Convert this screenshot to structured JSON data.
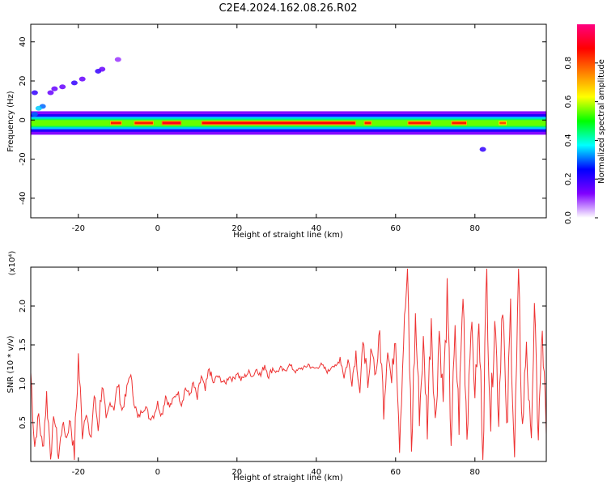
{
  "title": "C2E4.2024.162.08.26.R02",
  "chart_data": [
    {
      "type": "heatmap",
      "xlabel": "Height of straight line (km)",
      "ylabel": "Frequency (Hz)",
      "xlim": [
        -32,
        98
      ],
      "ylim": [
        -50,
        49
      ],
      "xticks": [
        "-20",
        "0",
        "20",
        "40",
        "60",
        "80"
      ],
      "yticks": [
        "40",
        "20",
        "0",
        "-20",
        "-40"
      ],
      "xtick_values": [
        -20,
        0,
        20,
        40,
        60,
        80
      ],
      "ytick_values": [
        40,
        20,
        0,
        -20,
        -40
      ],
      "colorbar": {
        "label": "Normalized spectral amplitude",
        "range": [
          0,
          1
        ],
        "ticks": [
          "0.0",
          "0.2",
          "0.4",
          "0.6",
          "0.8"
        ],
        "tick_values": [
          0.0,
          0.2,
          0.4,
          0.6,
          0.8
        ],
        "colors": [
          "#ffffff",
          "#8000ff",
          "#0000ff",
          "#00ffff",
          "#00ff00",
          "#ffff00",
          "#ff8000",
          "#ff0000",
          "#ff0080"
        ]
      },
      "band": {
        "freq_center": -1.5,
        "freq_halfwidth": 1.5,
        "x_start": -32,
        "x_end": 98
      },
      "high_amplitude_segments": [
        {
          "x": [
            -12,
            -9
          ],
          "amp": 0.85
        },
        {
          "x": [
            -6,
            -1
          ],
          "amp": 0.85
        },
        {
          "x": [
            1,
            6
          ],
          "amp": 0.9
        },
        {
          "x": [
            11,
            50
          ],
          "amp": 0.88
        },
        {
          "x": [
            52,
            54
          ],
          "amp": 0.85
        },
        {
          "x": [
            63,
            69
          ],
          "amp": 0.85
        },
        {
          "x": [
            74,
            78
          ],
          "amp": 0.85
        },
        {
          "x": [
            86,
            88
          ],
          "amp": 0.8
        }
      ],
      "scatter_points": [
        {
          "x": -31,
          "f": 14,
          "amp": 0.2
        },
        {
          "x": -29,
          "f": 7,
          "amp": 0.3
        },
        {
          "x": -27,
          "f": 14,
          "amp": 0.15
        },
        {
          "x": -26,
          "f": 16,
          "amp": 0.15
        },
        {
          "x": -24,
          "f": 17,
          "amp": 0.15
        },
        {
          "x": -21,
          "f": 19,
          "amp": 0.2
        },
        {
          "x": -19,
          "f": 21,
          "amp": 0.15
        },
        {
          "x": -15,
          "f": 25,
          "amp": 0.2
        },
        {
          "x": -14,
          "f": 26,
          "amp": 0.15
        },
        {
          "x": -10,
          "f": 31,
          "amp": 0.1
        },
        {
          "x": -31,
          "f": 3,
          "amp": 0.3
        },
        {
          "x": -30,
          "f": 6,
          "amp": 0.35
        },
        {
          "x": 82,
          "f": -15,
          "amp": 0.2
        }
      ]
    },
    {
      "type": "line",
      "xlabel": "Height of straight line (km)",
      "ylabel": "SNR (10 * v/v)",
      "scale_label": "(x10⁴)",
      "xlim": [
        -32,
        98
      ],
      "ylim": [
        0.0,
        2.5
      ],
      "xticks": [
        "-20",
        "0",
        "20",
        "40",
        "60",
        "80"
      ],
      "yticks": [
        "0.5",
        "1.0",
        "1.5",
        "2.0"
      ],
      "xtick_values": [
        -20,
        0,
        20,
        40,
        60,
        80
      ],
      "ytick_values": [
        0.5,
        1.0,
        1.5,
        2.0
      ],
      "color": "#ee3333",
      "series": [
        {
          "x": [
            -32,
            -31,
            -30,
            -29,
            -28,
            -27,
            -26,
            -25,
            -24,
            -23,
            -22,
            -21,
            -20,
            -19,
            -18,
            -17,
            -16,
            -15,
            -14,
            -13,
            -12,
            -11,
            -10,
            -9,
            -8,
            -7,
            -6,
            -5,
            -4,
            -3,
            -2,
            -1,
            0,
            1,
            2,
            3,
            4,
            5,
            6,
            7,
            8,
            9,
            10,
            11,
            12,
            13,
            14,
            15,
            16,
            17,
            18,
            19,
            20,
            21,
            22,
            23,
            24,
            25,
            26,
            27,
            28,
            29,
            30,
            31,
            32,
            33,
            34,
            35,
            36,
            37,
            38,
            39,
            40,
            41,
            42,
            43,
            44,
            45,
            46,
            47,
            48,
            49,
            50,
            51,
            52,
            53,
            54,
            55,
            56,
            57,
            58,
            59,
            60,
            61,
            62,
            63,
            64,
            65,
            66,
            67,
            68,
            69,
            70,
            71,
            72,
            73,
            74,
            75,
            76,
            77,
            78,
            79,
            80,
            81,
            82,
            83,
            84,
            85,
            86,
            87,
            88,
            89,
            90,
            91,
            92,
            93,
            94,
            95,
            96,
            97,
            98
          ],
          "values": [
            1.15,
            0.2,
            0.6,
            0.15,
            0.85,
            0.1,
            0.6,
            0.05,
            0.5,
            0.3,
            0.55,
            0.05,
            1.35,
            0.35,
            0.7,
            0.2,
            0.85,
            0.45,
            1.0,
            0.5,
            0.75,
            0.7,
            1.0,
            0.65,
            0.85,
            1.15,
            0.8,
            0.55,
            0.65,
            0.7,
            0.55,
            0.6,
            0.75,
            0.6,
            0.85,
            0.7,
            0.8,
            0.9,
            0.75,
            0.95,
            0.85,
            1.0,
            0.8,
            1.1,
            0.9,
            1.2,
            1.0,
            1.1,
            1.05,
            1.0,
            1.1,
            1.05,
            1.15,
            1.05,
            1.1,
            1.15,
            1.1,
            1.2,
            1.1,
            1.25,
            1.1,
            1.2,
            1.15,
            1.2,
            1.15,
            1.25,
            1.2,
            1.15,
            1.2,
            1.2,
            1.25,
            1.2,
            1.2,
            1.25,
            1.2,
            1.15,
            1.25,
            1.2,
            1.35,
            1.1,
            1.3,
            1.05,
            1.4,
            0.9,
            1.6,
            0.85,
            1.5,
            1.1,
            1.65,
            0.7,
            1.5,
            1.0,
            1.75,
            0.3,
            1.55,
            2.45,
            0.15,
            1.85,
            0.6,
            1.5,
            0.5,
            1.9,
            0.45,
            1.7,
            0.8,
            2.05,
            0.3,
            1.6,
            0.55,
            2.2,
            0.35,
            1.85,
            0.9,
            1.7,
            0.25,
            2.4,
            0.5,
            1.95,
            0.6,
            2.25,
            0.2,
            1.95,
            0.05,
            2.3,
            0.4,
            1.6,
            0.2,
            1.85,
            0.35,
            1.65,
            0.35
          ]
        }
      ]
    }
  ]
}
